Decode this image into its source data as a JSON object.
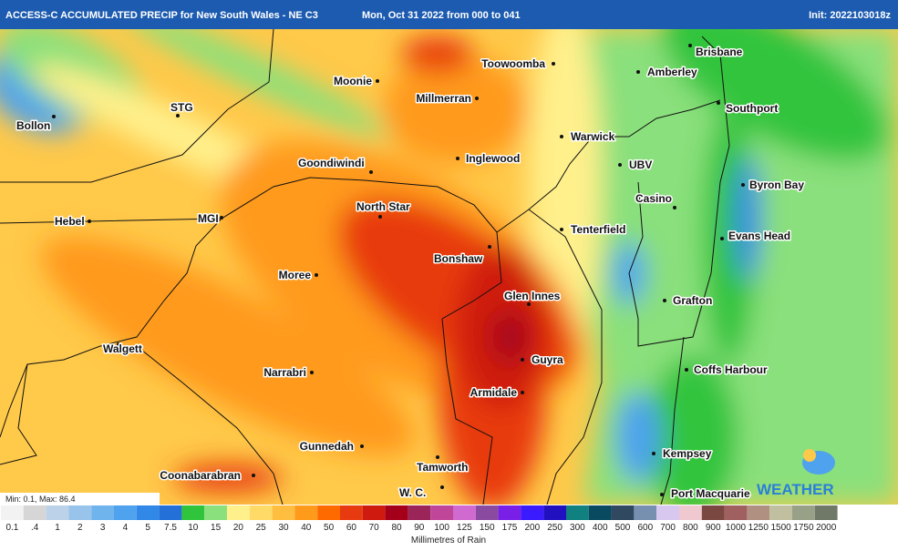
{
  "header": {
    "title": "ACCESS-C ACCUMULATED PRECIP for New South Wales - NE C3",
    "period": "Mon, Oct 31 2022 from 000 to 041",
    "init": "Init: 2022103018z"
  },
  "towns": [
    "Brisbane",
    "Amberley",
    "Southport",
    "Toowoomba",
    "Moonie",
    "Millmerran",
    "STG",
    "Bollon",
    "Warwick",
    "Inglewood",
    "Goondiwindi",
    "UBV",
    "Byron Bay",
    "Casino",
    "Hebel",
    "MGI",
    "North Star",
    "Tenterfield",
    "Evans Head",
    "Bonshaw",
    "Moree",
    "Glen Innes",
    "Grafton",
    "Walgett",
    "Guyra",
    "Narrabri",
    "Coffs Harbour",
    "Armidale",
    "Kempsey",
    "Gunnedah",
    "Tamworth",
    "Coonabarabran",
    "W. C.",
    "Port Macquarie"
  ],
  "min_max": "Min: 0.1, Max: 86.4",
  "logo": "WEATHER",
  "legend": {
    "title": "Millimetres of Rain",
    "items": [
      {
        "value": 0.1,
        "color": "#f2f2f2"
      },
      {
        "value": 0.4,
        "label": ".4",
        "color": "#d6d6d6"
      },
      {
        "value": 1,
        "color": "#bcd2e8"
      },
      {
        "value": 2,
        "color": "#98c4ec"
      },
      {
        "value": 3,
        "color": "#70b4ee"
      },
      {
        "value": 4,
        "color": "#4ea2ee"
      },
      {
        "value": 5,
        "color": "#3288e6"
      },
      {
        "value": 7.5,
        "color": "#2270d8"
      },
      {
        "value": 10,
        "color": "#30c43c"
      },
      {
        "value": 15,
        "color": "#8ae07c"
      },
      {
        "value": 20,
        "color": "#fff08c"
      },
      {
        "value": 25,
        "color": "#ffda66"
      },
      {
        "value": 30,
        "color": "#ffbe40"
      },
      {
        "value": 40,
        "color": "#ff9a1a"
      },
      {
        "value": 50,
        "color": "#ff6a00"
      },
      {
        "value": 60,
        "color": "#e83a10"
      },
      {
        "value": 70,
        "color": "#cf1a0f"
      },
      {
        "value": 80,
        "color": "#a5001a"
      },
      {
        "value": 90,
        "color": "#9b2458"
      },
      {
        "value": 100,
        "color": "#c0469a"
      },
      {
        "value": 125,
        "color": "#d06ad0"
      },
      {
        "value": 150,
        "color": "#8a4aa0"
      },
      {
        "value": 175,
        "color": "#7a1fe8"
      },
      {
        "value": 200,
        "color": "#3a1aff"
      },
      {
        "value": 250,
        "color": "#2010c0"
      },
      {
        "value": 300,
        "color": "#108080"
      },
      {
        "value": 400,
        "color": "#0a4a60"
      },
      {
        "value": 500,
        "color": "#304860"
      },
      {
        "value": 600,
        "color": "#7890b0"
      },
      {
        "value": 700,
        "color": "#d8c8f0"
      },
      {
        "value": 800,
        "color": "#f0c8d0"
      },
      {
        "value": 900,
        "color": "#7a4840"
      },
      {
        "value": 1000,
        "color": "#a06060"
      },
      {
        "value": 1250,
        "color": "#b09080"
      },
      {
        "value": 1500,
        "color": "#c0c0a0"
      },
      {
        "value": 1750,
        "color": "#98a088"
      },
      {
        "value": 2000,
        "color": "#707868"
      }
    ]
  }
}
